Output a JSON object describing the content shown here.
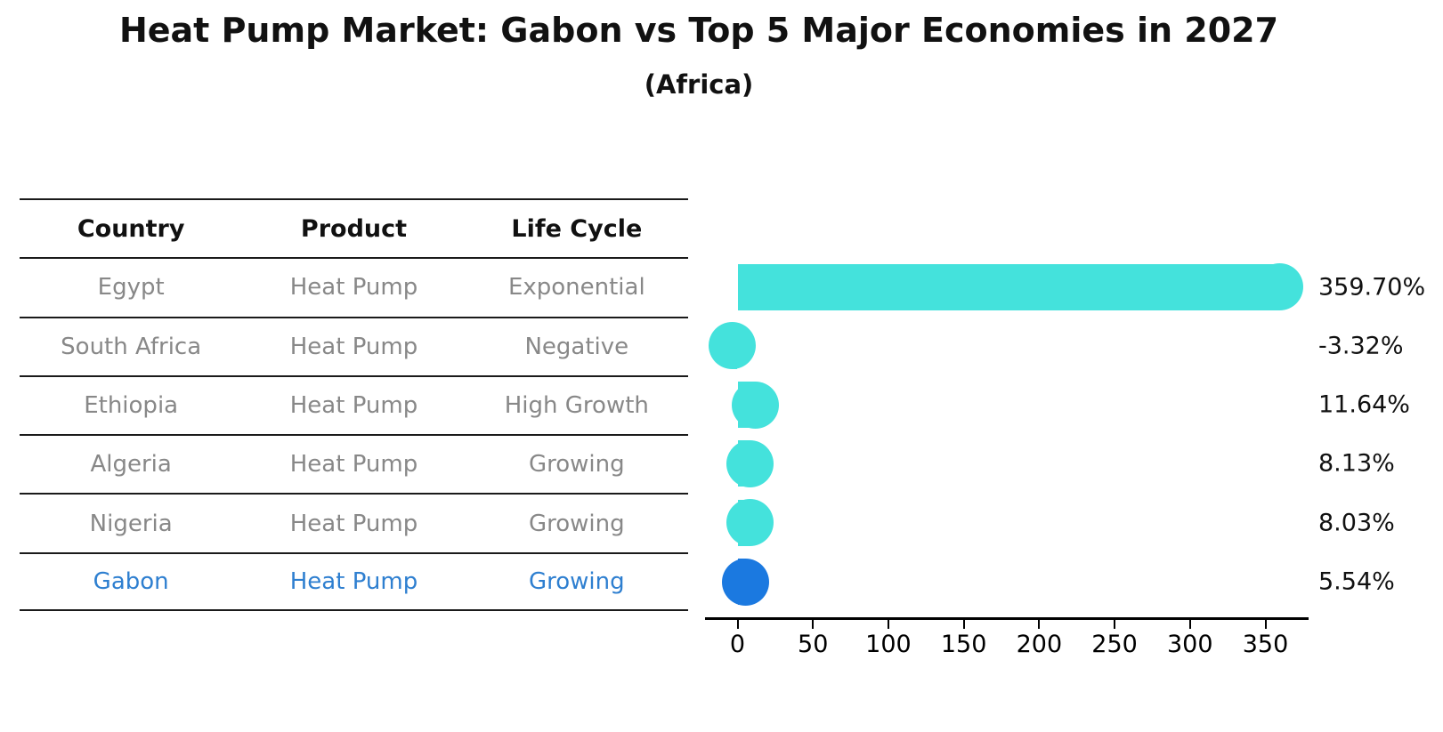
{
  "header": {
    "title": "Heat Pump Market: Gabon vs Top 5 Major Economies in 2027",
    "subtitle": "(Africa)"
  },
  "table": {
    "headers": [
      "Country",
      "Product",
      "Life Cycle"
    ],
    "rows": [
      {
        "country": "Egypt",
        "product": "Heat Pump",
        "life_cycle": "Exponential",
        "highlight": false
      },
      {
        "country": "South Africa",
        "product": "Heat Pump",
        "life_cycle": "Negative",
        "highlight": false
      },
      {
        "country": "Ethiopia",
        "product": "Heat Pump",
        "life_cycle": "High Growth",
        "highlight": false
      },
      {
        "country": "Algeria",
        "product": "Heat Pump",
        "life_cycle": "Growing",
        "highlight": false
      },
      {
        "country": "Nigeria",
        "product": "Heat Pump",
        "life_cycle": "Growing",
        "highlight": false
      },
      {
        "country": "Gabon",
        "product": "Heat Pump",
        "life_cycle": "Growing",
        "highlight": true
      }
    ]
  },
  "chart_data": {
    "type": "bar",
    "orientation": "horizontal",
    "title": "Heat Pump Market: Gabon vs Top 5 Major Economies in 2027",
    "subtitle": "(Africa)",
    "categories": [
      "Egypt",
      "South Africa",
      "Ethiopia",
      "Algeria",
      "Nigeria",
      "Gabon"
    ],
    "values": [
      359.7,
      -3.32,
      11.64,
      8.13,
      8.03,
      5.54
    ],
    "value_labels": [
      "359.70%",
      "-3.32%",
      "11.64%",
      "8.13%",
      "8.03%",
      "5.54%"
    ],
    "unit": "%",
    "x_ticks": [
      0,
      50,
      100,
      150,
      200,
      250,
      300,
      350
    ],
    "xlim": [
      -22,
      380
    ],
    "grid": false,
    "legend": false,
    "bar_color": "#44e2dc",
    "highlight_color": "#1b79e0",
    "highlight_index": 5,
    "highlight_text_color": "#2e7fd0",
    "text_color_muted": "#888888",
    "axis_color": "#000000"
  }
}
